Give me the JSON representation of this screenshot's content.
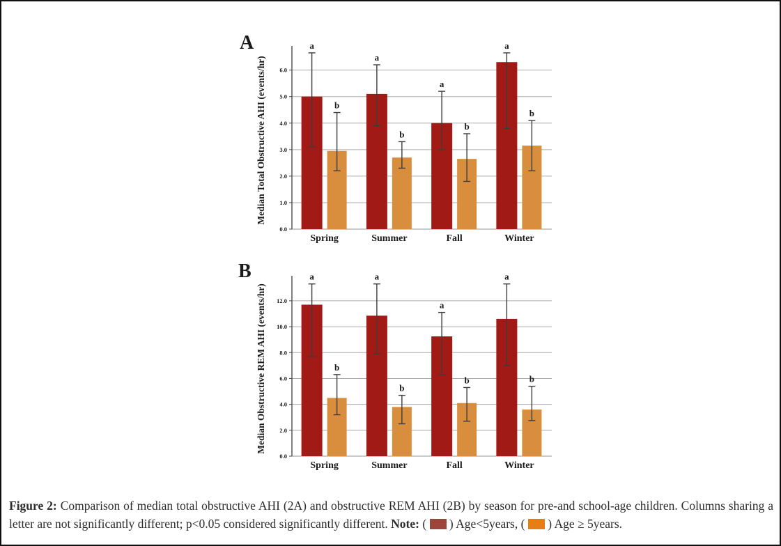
{
  "caption": {
    "figure_label": "Figure 2:",
    "body": "Comparison of median total obstructive AHI (2A) and obstructive REM AHI (2B) by season for pre-and school-age children. Columns sharing a letter are not significantly different; p<0.05 considered significantly different.",
    "note_label": "Note:",
    "legend": [
      {
        "pre": "(",
        "post": ")",
        "label": "Age<5years,",
        "color": "#9b453b"
      },
      {
        "pre": "(",
        "post": ")",
        "label": "Age ≥ 5years.",
        "color": "#e67e17"
      }
    ]
  },
  "colors": {
    "bar_young": "#a11a16",
    "bar_old": "#d98e3e",
    "gridline": "#ababab",
    "axis": "#4a4a4a",
    "error_bar": "#3c3c3c"
  },
  "chart_data": [
    {
      "id": "A",
      "panel_label": "A",
      "type": "bar",
      "title": "",
      "xlabel": "",
      "ylabel": "Median Total Obstructive AHI (events/hr)",
      "categories": [
        "Spring",
        "Summer",
        "Fall",
        "Winter"
      ],
      "ylim": [
        0,
        6.7
      ],
      "grid": true,
      "ytick_values": [
        0,
        1,
        2,
        3,
        4,
        5,
        6
      ],
      "ytick_labels": [
        "0.0",
        "1.0",
        "2.0",
        "3.0",
        "4.0",
        "5.0",
        "6.0"
      ],
      "series": [
        {
          "name": "Age<5years",
          "color": "#a11a16",
          "sig_letter": "a",
          "values": [
            5.0,
            5.1,
            4.0,
            6.3
          ],
          "err_low": [
            3.1,
            3.9,
            3.0,
            3.8
          ],
          "err_high": [
            6.65,
            6.2,
            5.2,
            6.65
          ]
        },
        {
          "name": "Age ≥ 5years",
          "color": "#d98e3e",
          "sig_letter": "b",
          "values": [
            2.95,
            2.7,
            2.65,
            3.15
          ],
          "err_low": [
            2.2,
            2.3,
            1.8,
            2.2
          ],
          "err_high": [
            4.4,
            3.3,
            3.6,
            4.1
          ]
        }
      ]
    },
    {
      "id": "B",
      "panel_label": "B",
      "type": "bar",
      "title": "",
      "xlabel": "",
      "ylabel": "Median Obstructive REM AHI (events/hr)",
      "categories": [
        "Spring",
        "Summer",
        "Fall",
        "Winter"
      ],
      "ylim": [
        0,
        13.5
      ],
      "grid": true,
      "ytick_values": [
        0,
        2,
        4,
        6,
        8,
        10,
        12
      ],
      "ytick_labels": [
        "0.0",
        "2.0",
        "4.0",
        "6.0",
        "8.0",
        "10.0",
        "12.0"
      ],
      "series": [
        {
          "name": "Age<5years",
          "color": "#a11a16",
          "sig_letter": "a",
          "values": [
            11.7,
            10.85,
            9.25,
            10.6
          ],
          "err_low": [
            7.7,
            7.9,
            6.3,
            7.0
          ],
          "err_high": [
            13.3,
            13.3,
            11.1,
            13.3
          ]
        },
        {
          "name": "Age ≥ 5years",
          "color": "#d98e3e",
          "sig_letter": "b",
          "values": [
            4.5,
            3.8,
            4.1,
            3.6
          ],
          "err_low": [
            3.2,
            2.5,
            2.7,
            2.75
          ],
          "err_high": [
            6.3,
            4.7,
            5.3,
            5.4
          ]
        }
      ]
    }
  ]
}
